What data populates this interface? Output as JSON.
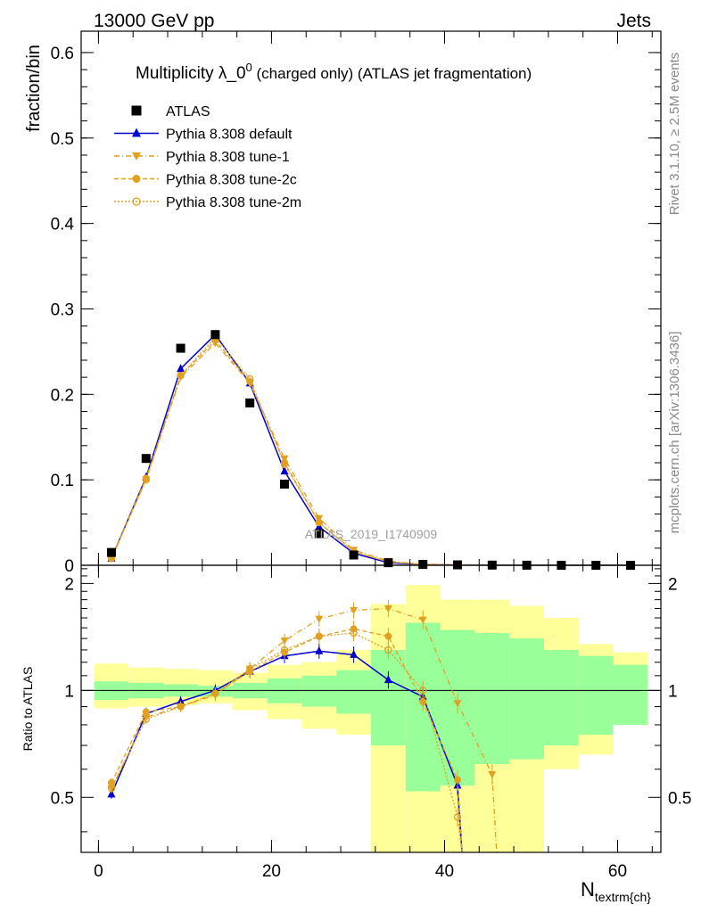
{
  "header": {
    "left": "13000 GeV pp",
    "right": "Jets"
  },
  "side_labels": {
    "version": "Rivet 3.1.10, ≥ 2.5M events",
    "source": "mcplots.cern.ch [arXiv:1306.3436]"
  },
  "watermark": "ATLAS_2019_I1740909",
  "colors": {
    "atlas": "#000000",
    "default": "#0000d0",
    "tunes": "#e0a020",
    "band_inner": "#99ff99",
    "band_outer": "#ffff99"
  },
  "chart_data": [
    {
      "type": "scatter",
      "title_main": "Multiplicity λ_0",
      "title_sup": "0",
      "title_rest": " (charged only) (ATLAS jet fragmentation)",
      "ylabel": "fraction/bin",
      "xlim": [
        -2,
        65
      ],
      "ylim": [
        0,
        0.625
      ],
      "yticks": [
        0,
        0.1,
        0.2,
        0.3,
        0.4,
        0.5,
        0.6
      ],
      "ytick_labels": [
        "0",
        "0.1",
        "0.2",
        "0.3",
        "0.4",
        "0.5",
        "0.6"
      ],
      "x": [
        1.5,
        5.5,
        9.5,
        13.5,
        17.5,
        21.5,
        25.5,
        29.5,
        33.5,
        37.5,
        41.5,
        45.5,
        49.5,
        53.5,
        57.5,
        61.5
      ],
      "series": [
        {
          "name": "ATLAS",
          "style": "data",
          "values": [
            0.015,
            0.125,
            0.254,
            0.27,
            0.19,
            0.095,
            0.037,
            0.012,
            0.003,
            0.001,
            0.0005,
            0.0002,
            0.0001,
            0.0,
            0.0,
            0.0
          ]
        },
        {
          "name": "Pythia 8.308 default",
          "style": "default",
          "values": [
            0.008,
            0.103,
            0.23,
            0.27,
            0.213,
            0.11,
            0.045,
            0.014,
            0.003,
            0.001,
            0.0003,
            0.0001,
            0.0,
            0.0,
            0.0,
            0.0
          ]
        },
        {
          "name": "Pythia 8.308 tune-1",
          "style": "tune1",
          "values": [
            0.008,
            0.1,
            0.22,
            0.26,
            0.213,
            0.125,
            0.055,
            0.018,
            0.005,
            0.001,
            0.0004,
            0.0001,
            0.0,
            0.0,
            0.0,
            0.0
          ]
        },
        {
          "name": "Pythia 8.308 tune-2c",
          "style": "tune2c",
          "values": [
            0.008,
            0.102,
            0.222,
            0.263,
            0.215,
            0.12,
            0.05,
            0.016,
            0.004,
            0.001,
            0.0003,
            0.0001,
            0.0,
            0.0,
            0.0,
            0.0
          ]
        },
        {
          "name": "Pythia 8.308 tune-2m",
          "style": "tune2m",
          "values": [
            0.008,
            0.1,
            0.222,
            0.267,
            0.218,
            0.118,
            0.05,
            0.016,
            0.004,
            0.001,
            0.0003,
            0.0001,
            0.0,
            0.0,
            0.0,
            0.0
          ]
        }
      ]
    },
    {
      "type": "line",
      "ylabel": "Ratio to ATLAS",
      "xlabel_main": "N",
      "xlabel_sub": "textrm{ch}",
      "xlim": [
        -2,
        65
      ],
      "ylim": [
        0.35,
        2.25
      ],
      "yticks": [
        0.5,
        1,
        2
      ],
      "ytick_labels": [
        "0.5",
        "1",
        "2"
      ],
      "xticks": [
        0,
        20,
        40,
        60
      ],
      "xtick_labels": [
        "0",
        "20",
        "40",
        "60"
      ],
      "bins": [
        [
          -0.5,
          3.5
        ],
        [
          3.5,
          7.5
        ],
        [
          7.5,
          11.5
        ],
        [
          11.5,
          15.5
        ],
        [
          15.5,
          19.5
        ],
        [
          19.5,
          23.5
        ],
        [
          23.5,
          27.5
        ],
        [
          27.5,
          31.5
        ],
        [
          31.5,
          35.5
        ],
        [
          35.5,
          39.5
        ],
        [
          39.5,
          43.5
        ],
        [
          43.5,
          47.5
        ],
        [
          47.5,
          51.5
        ],
        [
          51.5,
          55.5
        ],
        [
          55.5,
          59.5
        ],
        [
          59.5,
          63.5
        ]
      ],
      "band_inner": [
        [
          0.94,
          1.06
        ],
        [
          0.95,
          1.05
        ],
        [
          0.96,
          1.04
        ],
        [
          0.96,
          1.03
        ],
        [
          0.95,
          1.05
        ],
        [
          0.92,
          1.08
        ],
        [
          0.9,
          1.1
        ],
        [
          0.86,
          1.14
        ],
        [
          0.7,
          1.3
        ],
        [
          0.52,
          1.55
        ],
        [
          0.54,
          1.48
        ],
        [
          0.62,
          1.45
        ],
        [
          0.64,
          1.4
        ],
        [
          0.7,
          1.3
        ],
        [
          0.75,
          1.25
        ],
        [
          0.8,
          1.18
        ]
      ],
      "band_outer": [
        [
          0.89,
          1.19
        ],
        [
          0.9,
          1.16
        ],
        [
          0.91,
          1.15
        ],
        [
          0.92,
          1.14
        ],
        [
          0.88,
          1.12
        ],
        [
          0.83,
          1.18
        ],
        [
          0.78,
          1.2
        ],
        [
          0.75,
          1.3
        ],
        [
          0.3,
          1.75
        ],
        [
          0.3,
          1.98
        ],
        [
          0.3,
          1.8
        ],
        [
          0.3,
          1.8
        ],
        [
          0.3,
          1.73
        ],
        [
          0.6,
          1.6
        ],
        [
          0.66,
          1.35
        ],
        [
          0.83,
          1.28
        ]
      ],
      "x": [
        1.5,
        5.5,
        9.5,
        13.5,
        17.5,
        21.5,
        25.5,
        29.5,
        33.5,
        37.5,
        41.5,
        45.5
      ],
      "series": [
        {
          "name": "Pythia 8.308 default",
          "style": "default",
          "values": [
            0.51,
            0.86,
            0.93,
            1.0,
            1.13,
            1.25,
            1.29,
            1.26,
            1.07,
            0.96,
            0.54,
            null
          ]
        },
        {
          "name": "Pythia 8.308 tune-1",
          "style": "tune1",
          "values": [
            0.53,
            0.84,
            0.9,
            0.97,
            1.15,
            1.38,
            1.59,
            1.68,
            1.7,
            1.58,
            0.92,
            0.58
          ]
        },
        {
          "name": "Pythia 8.308 tune-2c",
          "style": "tune2c",
          "values": [
            0.55,
            0.87,
            0.9,
            0.98,
            1.13,
            1.28,
            1.42,
            1.49,
            1.42,
            0.93,
            0.56,
            null
          ]
        },
        {
          "name": "Pythia 8.308 tune-2m",
          "style": "tune2m",
          "values": [
            0.53,
            0.83,
            0.9,
            0.98,
            1.15,
            1.3,
            1.42,
            1.45,
            1.3,
            1.0,
            0.44,
            null
          ]
        }
      ]
    }
  ]
}
